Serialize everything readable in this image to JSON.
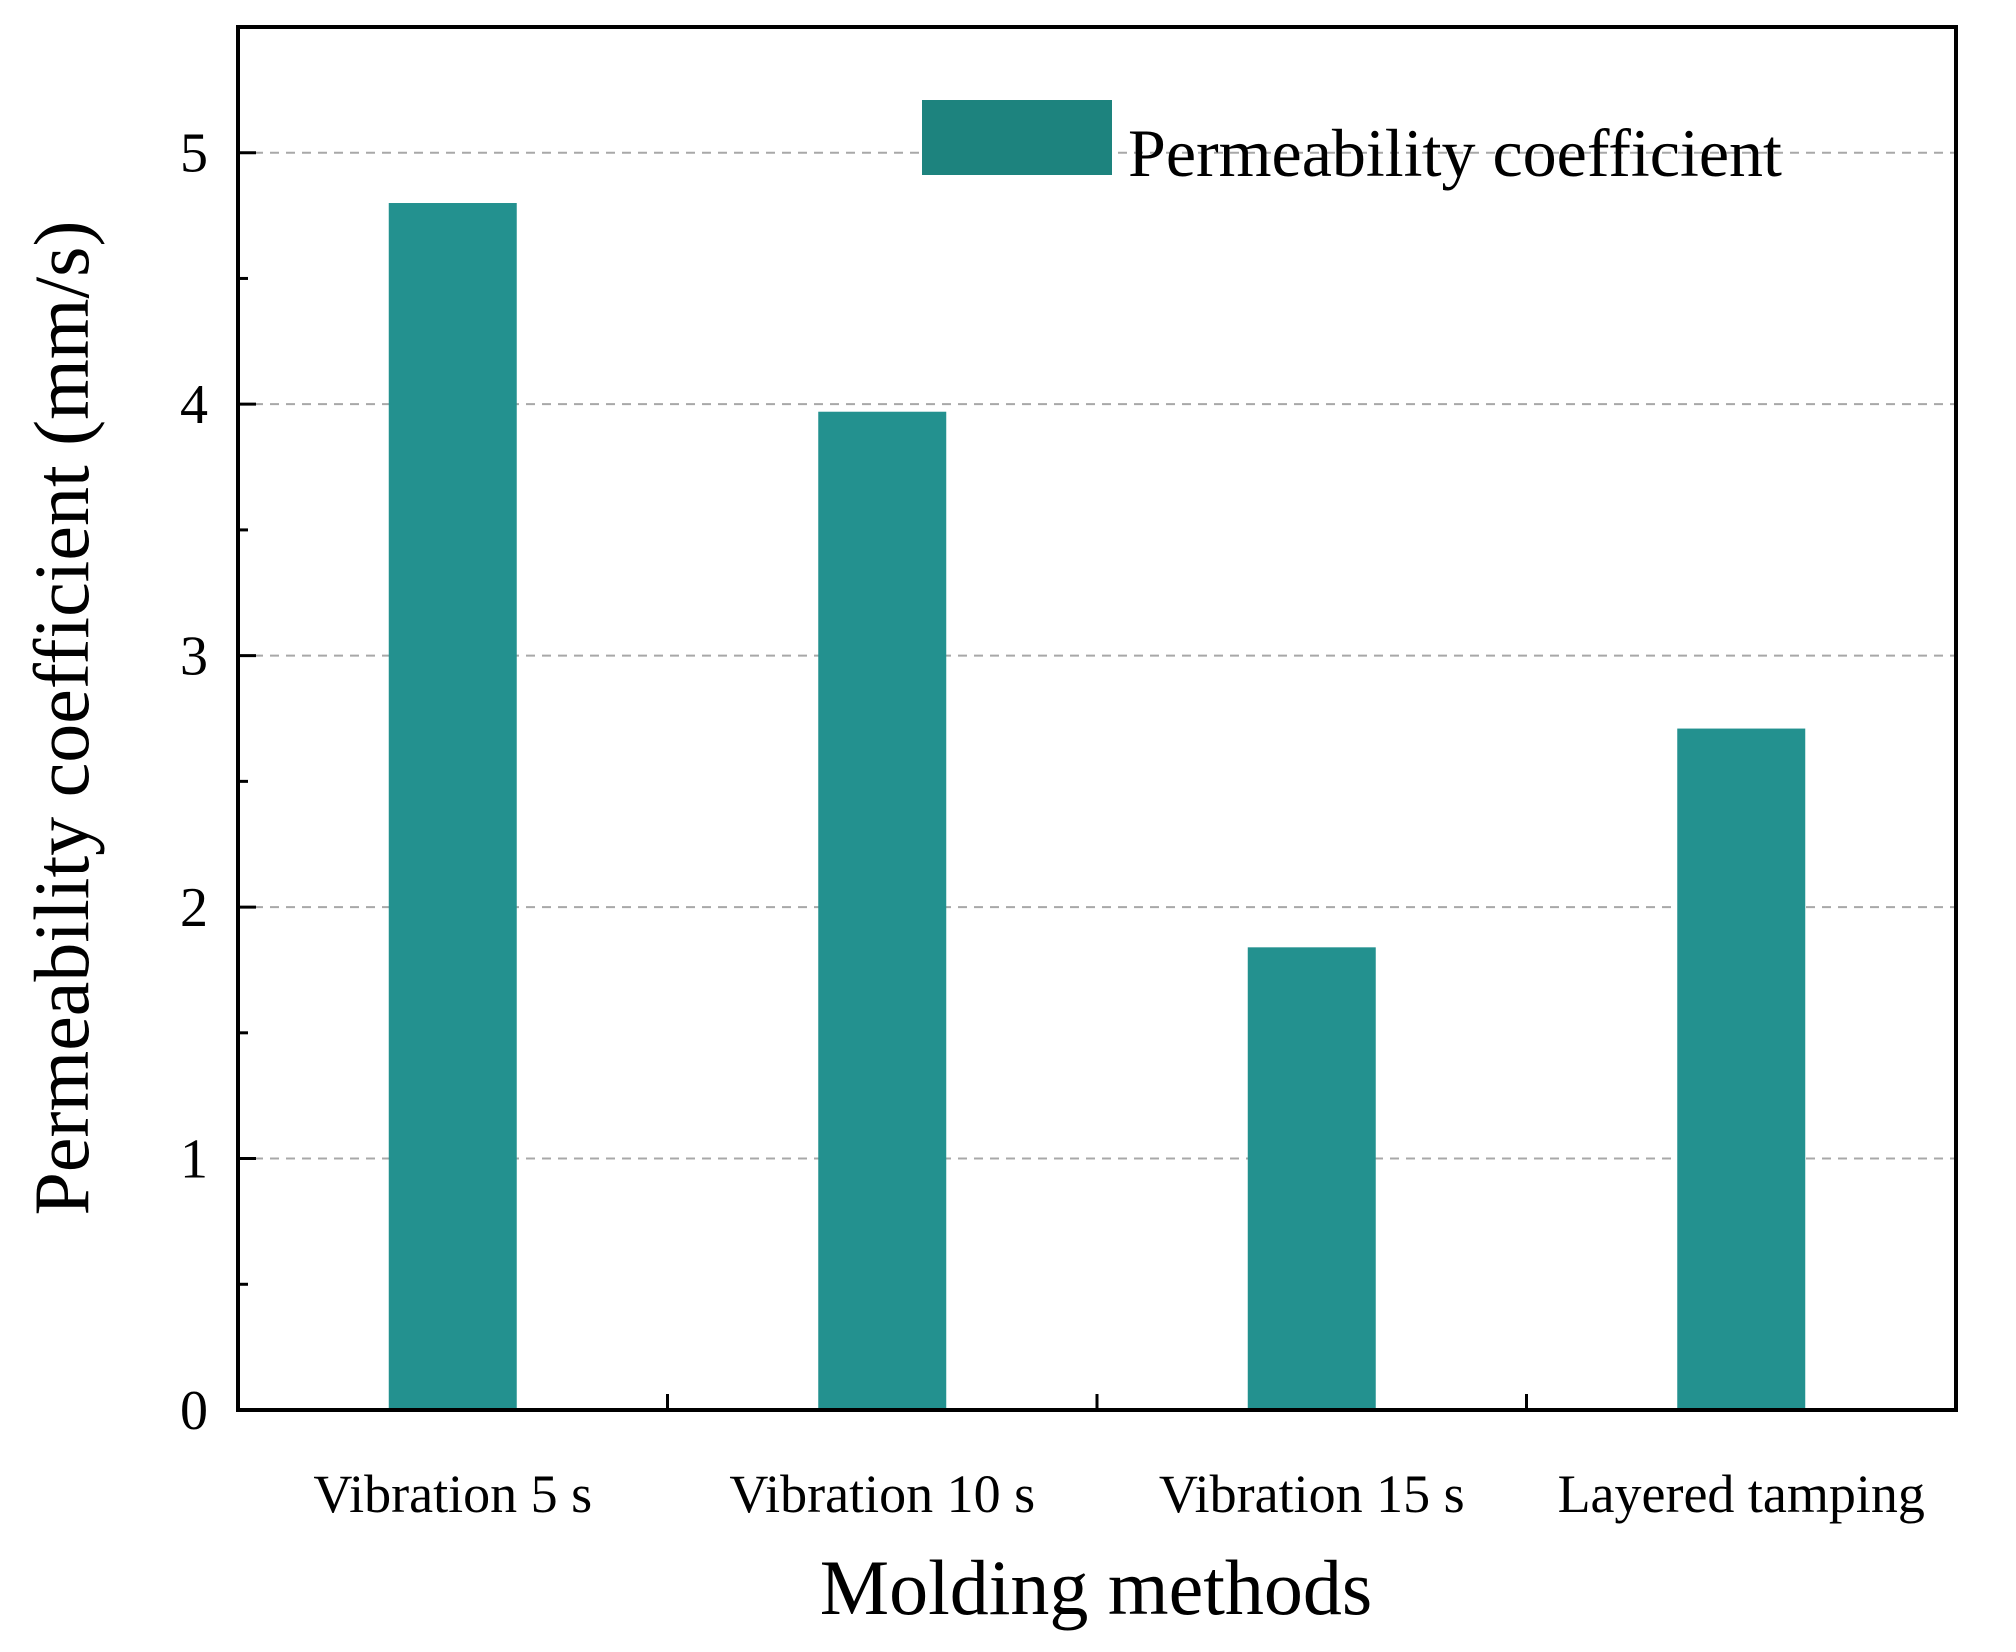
{
  "chart_data": {
    "type": "bar",
    "title": "",
    "xlabel": "Molding methods",
    "ylabel": "Permeability coefficient (mm/s)",
    "categories": [
      "Vibration 5 s",
      "Vibration 10 s",
      "Vibration 15 s",
      "Layered tamping"
    ],
    "series": [
      {
        "name": "Permeability coefficient",
        "values": [
          4.8,
          3.97,
          1.84,
          2.71
        ]
      }
    ],
    "ylim": [
      0,
      5.5
    ],
    "yticks": [
      "0",
      "1",
      "2",
      "3",
      "4",
      "5"
    ],
    "grid": true,
    "legend_position": "top-right",
    "bar_color": "#23918f",
    "legend_color": "#1d837e"
  }
}
